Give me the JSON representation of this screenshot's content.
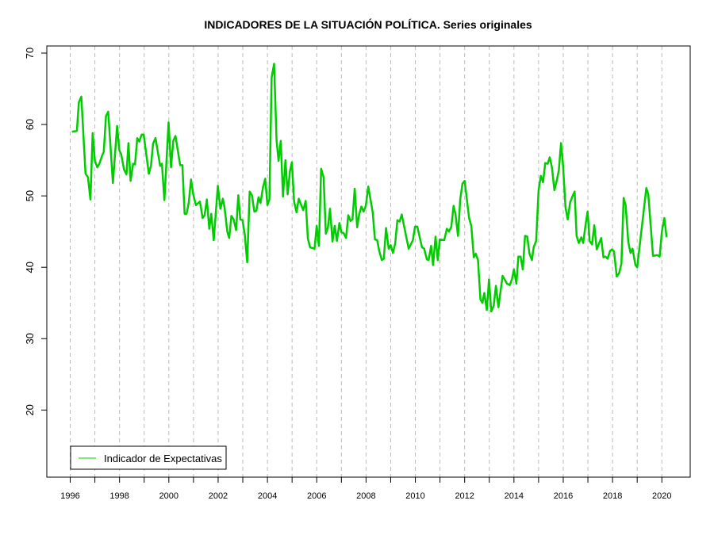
{
  "chart_data": {
    "type": "line",
    "title": "INDICADORES DE LA SITUACIÓN POLÍTICA. Series originales",
    "xlabel": "",
    "ylabel": "",
    "xlim": [
      1995.05,
      2021.15
    ],
    "ylim": [
      10.6,
      71
    ],
    "grid": "vertical dashed lines at each year",
    "legend_position": "bottom-left",
    "x_ticks": [
      1996,
      1997,
      1998,
      1999,
      2000,
      2001,
      2002,
      2003,
      2004,
      2005,
      2006,
      2007,
      2008,
      2009,
      2010,
      2011,
      2012,
      2013,
      2014,
      2015,
      2016,
      2017,
      2018,
      2019,
      2020
    ],
    "x_tick_labels": [
      "1996",
      "1998",
      "2000",
      "2002",
      "2004",
      "2006",
      "2008",
      "2010",
      "2012",
      "2014",
      "2016",
      "2018",
      "2020"
    ],
    "y_ticks": [
      20,
      30,
      40,
      50,
      60,
      70
    ],
    "y_tick_labels": [
      "20",
      "30",
      "40",
      "50",
      "60",
      "70"
    ],
    "series": [
      {
        "name": "Indicador de Expectativas",
        "color": "#00CC00",
        "x": [
          1996.07,
          1996.27,
          1996.35,
          1996.45,
          1996.62,
          1996.72,
          1996.82,
          1996.91,
          1997.0,
          1997.1,
          1997.18,
          1997.29,
          1997.36,
          1997.45,
          1997.54,
          1997.73,
          1997.9,
          1997.99,
          1998.07,
          1998.18,
          1998.28,
          1998.36,
          1998.45,
          1998.55,
          1998.63,
          1998.72,
          1998.8,
          1998.9,
          1998.98,
          1999.19,
          1999.28,
          1999.36,
          1999.46,
          1999.65,
          1999.72,
          1999.82,
          1999.99,
          2000.09,
          2000.18,
          2000.27,
          2000.46,
          2000.55,
          2000.64,
          2000.72,
          2000.81,
          2000.9,
          2000.99,
          2001.1,
          2001.26,
          2001.37,
          2001.45,
          2001.54,
          2001.64,
          2001.72,
          2001.82,
          2001.99,
          2002.09,
          2002.19,
          2002.26,
          2002.37,
          2002.45,
          2002.54,
          2002.63,
          2002.73,
          2002.82,
          2002.9,
          2002.99,
          2003.08,
          2003.18,
          2003.28,
          2003.37,
          2003.47,
          2003.55,
          2003.64,
          2003.72,
          2003.82,
          2003.91,
          2004.0,
          2004.08,
          2004.17,
          2004.27,
          2004.37,
          2004.45,
          2004.54,
          2004.63,
          2004.73,
          2004.82,
          2004.91,
          2004.99,
          2005.08,
          2005.18,
          2005.27,
          2005.45,
          2005.55,
          2005.64,
          2005.73,
          2005.91,
          2006.0,
          2006.09,
          2006.18,
          2006.28,
          2006.37,
          2006.45,
          2006.54,
          2006.64,
          2006.73,
          2006.82,
          2006.92,
          2007.0,
          2007.09,
          2007.19,
          2007.28,
          2007.37,
          2007.45,
          2007.54,
          2007.64,
          2007.72,
          2007.81,
          2007.9,
          2007.99,
          2008.09,
          2008.27,
          2008.36,
          2008.45,
          2008.54,
          2008.64,
          2008.72,
          2008.81,
          2008.92,
          2009.0,
          2009.09,
          2009.18,
          2009.27,
          2009.36,
          2009.45,
          2009.73,
          2009.9,
          2009.99,
          2010.08,
          2010.27,
          2010.36,
          2010.47,
          2010.54,
          2010.64,
          2010.72,
          2010.82,
          2010.91,
          2010.99,
          2011.17,
          2011.28,
          2011.36,
          2011.46,
          2011.55,
          2011.63,
          2011.73,
          2011.82,
          2011.91,
          2012.0,
          2012.18,
          2012.27,
          2012.37,
          2012.45,
          2012.54,
          2012.64,
          2012.72,
          2012.8,
          2012.9,
          2012.99,
          2013.08,
          2013.18,
          2013.27,
          2013.37,
          2013.54,
          2013.72,
          2013.83,
          2013.92,
          2014.0,
          2014.1,
          2014.18,
          2014.27,
          2014.36,
          2014.45,
          2014.54,
          2014.63,
          2014.73,
          2014.8,
          2014.9,
          2015.0,
          2015.09,
          2015.18,
          2015.27,
          2015.37,
          2015.45,
          2015.54,
          2015.64,
          2015.73,
          2015.82,
          2015.91,
          2015.99,
          2016.09,
          2016.18,
          2016.28,
          2016.37,
          2016.46,
          2016.54,
          2016.63,
          2016.73,
          2016.81,
          2016.91,
          2016.99,
          2017.07,
          2017.17,
          2017.26,
          2017.36,
          2017.45,
          2017.54,
          2017.63,
          2017.71,
          2017.8,
          2017.9,
          2017.98,
          2018.06,
          2018.17,
          2018.27,
          2018.36,
          2018.45,
          2018.53,
          2018.64,
          2018.73,
          2018.81,
          2018.93,
          2019.0,
          2019.18,
          2019.37,
          2019.45,
          2019.64,
          2019.82,
          2019.91,
          2020.0,
          2020.1,
          2020.19
        ],
        "y": [
          59.0,
          59.1,
          63.1,
          63.9,
          53.1,
          52.6,
          49.5,
          58.8,
          54.9,
          54.0,
          54.5,
          55.6,
          56.2,
          61.2,
          61.8,
          51.8,
          59.8,
          56.4,
          55.8,
          53.7,
          53.0,
          57.4,
          52.1,
          54.5,
          54.4,
          58.1,
          57.6,
          58.6,
          58.6,
          53.1,
          54.3,
          57.3,
          58.1,
          54.2,
          54.5,
          49.4,
          60.3,
          54.0,
          57.7,
          58.4,
          54.3,
          54.3,
          47.5,
          47.5,
          49.1,
          52.3,
          50.2,
          48.7,
          49.2,
          46.9,
          47.3,
          49.5,
          45.4,
          47.5,
          43.8,
          51.4,
          48.2,
          49.6,
          48.4,
          45.0,
          44.1,
          47.2,
          46.7,
          45.2,
          50.1,
          46.7,
          46.6,
          44.6,
          40.7,
          50.6,
          50.1,
          47.8,
          47.9,
          49.8,
          49.0,
          51.2,
          52.4,
          48.7,
          49.5,
          66.6,
          68.5,
          57.8,
          54.9,
          57.7,
          49.9,
          55.0,
          50.2,
          53.4,
          54.7,
          49.2,
          47.7,
          49.6,
          48.0,
          49.3,
          44.0,
          42.8,
          42.6,
          45.8,
          43.0,
          53.8,
          52.6,
          44.7,
          45.5,
          48.2,
          43.6,
          45.8,
          43.7,
          46.2,
          44.9,
          44.8,
          44.1,
          47.3,
          46.5,
          46.7,
          51.0,
          45.6,
          47.4,
          48.5,
          47.8,
          48.6,
          51.3,
          47.7,
          43.9,
          43.8,
          42.2,
          41.0,
          41.2,
          45.5,
          42.6,
          43.1,
          42.0,
          43.3,
          46.6,
          46.4,
          47.4,
          42.6,
          43.8,
          45.7,
          45.7,
          42.8,
          42.6,
          41.1,
          41.0,
          43.0,
          40.3,
          44.3,
          41.0,
          43.9,
          43.8,
          45.4,
          45.0,
          45.7,
          48.6,
          47.4,
          44.4,
          49.5,
          51.7,
          52.1,
          46.9,
          45.8,
          41.4,
          41.9,
          41.0,
          35.5,
          35.0,
          36.4,
          34.0,
          38.3,
          33.8,
          34.6,
          37.4,
          34.4,
          38.8,
          37.7,
          37.5,
          38.3,
          39.7,
          37.7,
          41.5,
          41.5,
          39.7,
          44.4,
          44.3,
          41.9,
          41.0,
          42.8,
          43.7,
          50.8,
          52.8,
          51.9,
          54.6,
          54.5,
          55.4,
          54.0,
          50.8,
          52.0,
          53.6,
          57.4,
          54.3,
          48.4,
          46.7,
          49.1,
          49.9,
          50.6,
          44.4,
          43.4,
          44.2,
          43.4,
          46.1,
          47.8,
          43.7,
          43.2,
          45.9,
          42.5,
          43.3,
          44.1,
          41.4,
          41.5,
          41.2,
          42.3,
          42.5,
          42.2,
          38.7,
          39.2,
          40.5,
          49.7,
          48.7,
          43.5,
          42.0,
          42.6,
          40.3,
          40.0,
          45.4,
          51.1,
          50.2,
          41.6,
          41.7,
          41.5,
          45.0,
          46.9,
          44.2
        ]
      }
    ]
  }
}
